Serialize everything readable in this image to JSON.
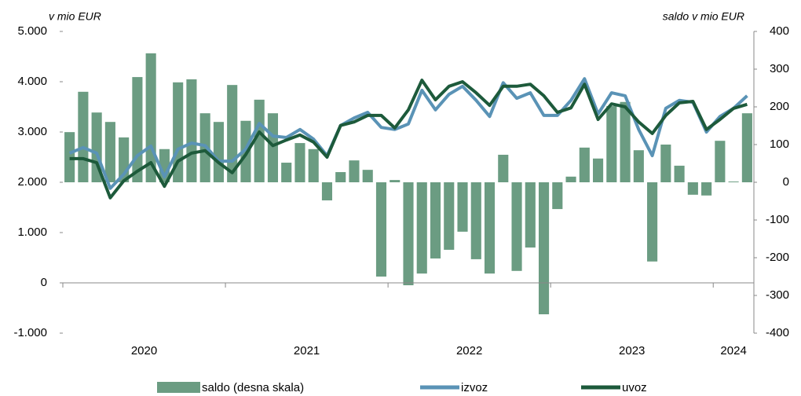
{
  "chart_data": {
    "type": "combo",
    "y_axis_label": "v mio EUR",
    "y2_axis_label": "saldo v mio EUR",
    "year_labels": [
      "2020",
      "2021",
      "2022",
      "2023",
      "2024"
    ],
    "categories": [
      null,
      null,
      null,
      null,
      null,
      null,
      null,
      null,
      null,
      null,
      null,
      null,
      null,
      null,
      null,
      null,
      null,
      null,
      null,
      null,
      null,
      null,
      null,
      null,
      null,
      null,
      null,
      null,
      null,
      null,
      null,
      null,
      null,
      null,
      null,
      null,
      null,
      null,
      null,
      null,
      null,
      null,
      null,
      null,
      null,
      null,
      null,
      null,
      null,
      null,
      null
    ],
    "ylim": [
      -1000,
      5000
    ],
    "yticks": [
      {
        "value": -1000,
        "label": "-1.000"
      },
      0,
      {
        "value": 1000,
        "label": "1.000"
      },
      {
        "value": 2000,
        "label": "2.000"
      },
      {
        "value": 3000,
        "label": "3.000"
      },
      {
        "value": 4000,
        "label": "4.000"
      },
      {
        "value": 5000,
        "label": "5.000"
      }
    ],
    "y2lim": [
      -400,
      400
    ],
    "y2ticks": [
      -400,
      -300,
      -200,
      -100,
      0,
      100,
      200,
      300,
      400
    ],
    "series": [
      {
        "name": "saldo (desna skala)",
        "type": "bar",
        "axis": "y2",
        "color": "#6b9c82",
        "values": [
          133,
          240,
          185,
          160,
          119,
          279,
          342,
          88,
          265,
          273,
          183,
          160,
          258,
          163,
          219,
          183,
          52,
          104,
          88,
          -48,
          27,
          58,
          33,
          -250,
          6,
          -273,
          -242,
          -202,
          -179,
          -131,
          -204,
          -242,
          73,
          -235,
          -173,
          -350,
          -71,
          15,
          92,
          63,
          202,
          213,
          85,
          -210,
          100,
          44,
          -33,
          -35,
          110,
          2,
          183
        ]
      },
      {
        "name": "izvoz",
        "type": "line",
        "color": "#5a93b6",
        "values": [
          2580,
          2690,
          2580,
          1880,
          2160,
          2530,
          2720,
          2110,
          2660,
          2780,
          2730,
          2420,
          2420,
          2660,
          3170,
          2920,
          2890,
          3050,
          2860,
          2530,
          3130,
          3280,
          3390,
          3090,
          3050,
          3160,
          3830,
          3440,
          3750,
          3910,
          3630,
          3310,
          3980,
          3670,
          3780,
          3330,
          3330,
          3630,
          4060,
          3360,
          3780,
          3720,
          3050,
          2530,
          3470,
          3630,
          3590,
          3000,
          3310,
          3470,
          3720
        ]
      },
      {
        "name": "uvoz",
        "type": "line",
        "color": "#1d5a3b",
        "values": [
          2470,
          2470,
          2390,
          1690,
          2030,
          2220,
          2390,
          1920,
          2420,
          2580,
          2630,
          2390,
          2190,
          2550,
          3000,
          2730,
          2840,
          2940,
          2800,
          2500,
          3130,
          3200,
          3330,
          3330,
          3080,
          3440,
          4030,
          3640,
          3910,
          4000,
          3780,
          3530,
          3910,
          3910,
          3950,
          3720,
          3390,
          3480,
          3950,
          3250,
          3560,
          3500,
          3200,
          2970,
          3330,
          3580,
          3610,
          3050,
          3250,
          3470,
          3550
        ]
      }
    ]
  }
}
